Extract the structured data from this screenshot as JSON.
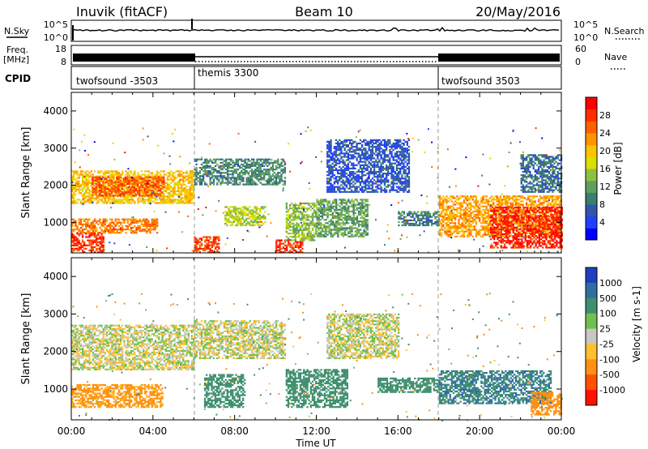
{
  "header": {
    "station": "Inuvik (fitACF)",
    "beam": "Beam 10",
    "date": "20/May/2016"
  },
  "status_panels": {
    "nsky_label": "N.Sky",
    "nsky_ticks": [
      "10^5",
      "10^0"
    ],
    "nsearch_label": "N.Search",
    "nsearch_ticks": [
      "10^5",
      "10^0"
    ],
    "freq_label": [
      "Freq.",
      "[MHz]"
    ],
    "freq_ticks": [
      "18",
      "8"
    ],
    "nave_label": "Nave",
    "nave_ticks": [
      "60",
      "0"
    ],
    "cpid_label": "CPID",
    "cpid_segments": [
      {
        "name": "twofsound -3503",
        "start_h": 0,
        "end_h": 6
      },
      {
        "name": "themis 3300",
        "start_h": 6,
        "end_h": 18
      },
      {
        "name": "twofsound 3503",
        "start_h": 18,
        "end_h": 24
      }
    ]
  },
  "chart_data": [
    {
      "type": "heatmap",
      "quantity": "power",
      "xlabel": "Time UT",
      "ylabel": "Slant Range [km]",
      "xlim": [
        0,
        24
      ],
      "ylim": [
        180,
        4500
      ],
      "xticks": [
        "00:00",
        "04:00",
        "08:00",
        "12:00",
        "16:00",
        "20:00",
        "00:00"
      ],
      "yticks": [
        1000,
        2000,
        3000,
        4000
      ],
      "colorbar": {
        "label": "Power [dB]",
        "range": [
          0,
          32
        ],
        "ticks": [
          "4",
          "8",
          "12",
          "16",
          "20",
          "24",
          "28"
        ],
        "colors": [
          "#0000ff",
          "#2040ff",
          "#3355aa",
          "#3a7f6a",
          "#5fa060",
          "#90c040",
          "#d7e000",
          "#ffc400",
          "#ff9400",
          "#ff6000",
          "#ff2e00",
          "#ff0000"
        ]
      },
      "echo_regions": [
        {
          "t0": 0.0,
          "t1": 6.0,
          "r0": 1500,
          "r1": 2400,
          "level": 20
        },
        {
          "t0": 1.0,
          "t1": 4.5,
          "r0": 1700,
          "r1": 2200,
          "level": 26
        },
        {
          "t0": 0.0,
          "t1": 4.2,
          "r0": 700,
          "r1": 1100,
          "level": 24
        },
        {
          "t0": 0.0,
          "t1": 1.6,
          "r0": 180,
          "r1": 700,
          "level": 28
        },
        {
          "t0": 6.0,
          "t1": 7.2,
          "r0": 180,
          "r1": 600,
          "level": 27
        },
        {
          "t0": 6.0,
          "t1": 10.5,
          "r0": 2000,
          "r1": 2700,
          "level": 10
        },
        {
          "t0": 7.5,
          "t1": 9.5,
          "r0": 900,
          "r1": 1400,
          "level": 16
        },
        {
          "t0": 10.0,
          "t1": 11.3,
          "r0": 180,
          "r1": 500,
          "level": 28
        },
        {
          "t0": 10.5,
          "t1": 12.0,
          "r0": 500,
          "r1": 1500,
          "level": 14
        },
        {
          "t0": 12.0,
          "t1": 14.5,
          "r0": 600,
          "r1": 1600,
          "level": 12
        },
        {
          "t0": 12.5,
          "t1": 16.5,
          "r0": 1800,
          "r1": 3200,
          "level": 6
        },
        {
          "t0": 16.0,
          "t1": 18.0,
          "r0": 900,
          "r1": 1300,
          "level": 9
        },
        {
          "t0": 18.0,
          "t1": 24.0,
          "r0": 600,
          "r1": 1700,
          "level": 22
        },
        {
          "t0": 20.5,
          "t1": 24.0,
          "r0": 300,
          "r1": 1400,
          "level": 29
        },
        {
          "t0": 22.0,
          "t1": 24.0,
          "r0": 1800,
          "r1": 2800,
          "level": 8
        }
      ]
    },
    {
      "type": "heatmap",
      "quantity": "velocity",
      "xlabel": "Time UT",
      "ylabel": "Slant Range [km]",
      "xlim": [
        0,
        24
      ],
      "ylim": [
        180,
        4500
      ],
      "xticks": [
        "00:00",
        "04:00",
        "08:00",
        "12:00",
        "16:00",
        "20:00",
        "00:00"
      ],
      "yticks": [
        1000,
        2000,
        3000,
        4000
      ],
      "colorbar": {
        "label": "Velocity [m s-1]",
        "ticks": [
          "1000",
          "500",
          "100",
          "25",
          "-25",
          "-100",
          "-500",
          "-1000"
        ],
        "colors": [
          "#1f3fbf",
          "#2f6fa0",
          "#3f8f6f",
          "#70c050",
          "#c8c8c0",
          "#ffc030",
          "#ff9010",
          "#ff5000",
          "#ff1000"
        ]
      },
      "echo_regions": [
        {
          "t0": 0.0,
          "t1": 6.0,
          "r0": 1500,
          "r1": 2700,
          "level": 0
        },
        {
          "t0": 0.0,
          "t1": 4.5,
          "r0": 500,
          "r1": 1100,
          "level": -150
        },
        {
          "t0": 6.0,
          "t1": 10.5,
          "r0": 1800,
          "r1": 2800,
          "level": 0
        },
        {
          "t0": 6.5,
          "t1": 8.5,
          "r0": 500,
          "r1": 1400,
          "level": 200
        },
        {
          "t0": 10.5,
          "t1": 13.5,
          "r0": 500,
          "r1": 1500,
          "level": 300
        },
        {
          "t0": 12.5,
          "t1": 16.0,
          "r0": 1800,
          "r1": 3000,
          "level": 0
        },
        {
          "t0": 15.0,
          "t1": 18.0,
          "r0": 900,
          "r1": 1300,
          "level": 200
        },
        {
          "t0": 18.0,
          "t1": 23.5,
          "r0": 600,
          "r1": 1500,
          "level": 500
        },
        {
          "t0": 22.5,
          "t1": 24.0,
          "r0": 300,
          "r1": 900,
          "level": -300
        }
      ]
    }
  ]
}
